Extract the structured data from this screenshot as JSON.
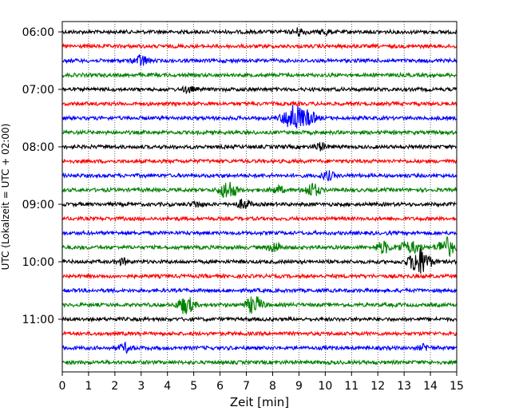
{
  "chart_data": {
    "type": "line",
    "title": "",
    "xlabel": "Zeit  [min]",
    "ylabel": "UTC (Lokalzeit = UTC + 02:00)",
    "xlim": [
      0,
      15
    ],
    "x_ticks": [
      0,
      1,
      2,
      3,
      4,
      5,
      6,
      7,
      8,
      9,
      10,
      11,
      12,
      13,
      14,
      15
    ],
    "x_tick_labels": [
      "0",
      "1",
      "2",
      "3",
      "4",
      "5",
      "6",
      "7",
      "8",
      "9",
      "10",
      "11",
      "12",
      "13",
      "14",
      "15"
    ],
    "y_tick_labels": [
      "06:00",
      "07:00",
      "08:00",
      "09:00",
      "10:00",
      "11:00"
    ],
    "y_tick_row_index": [
      0,
      4,
      8,
      12,
      16,
      20
    ],
    "grid": "vertical dotted",
    "color_cycle": [
      "#000000",
      "#ff0000",
      "#0000ff",
      "#008000"
    ],
    "trace_minutes": 15,
    "series": [
      {
        "start": "06:00",
        "events": [
          {
            "t": 9.0,
            "amp": 0.8
          },
          {
            "t": 10.0,
            "amp": 0.6
          }
        ]
      },
      {
        "start": "06:15",
        "events": []
      },
      {
        "start": "06:30",
        "events": [
          {
            "t": 3.0,
            "amp": 1.2
          }
        ]
      },
      {
        "start": "06:45",
        "events": []
      },
      {
        "start": "07:00",
        "events": [
          {
            "t": 4.8,
            "amp": 0.6
          }
        ]
      },
      {
        "start": "07:15",
        "events": []
      },
      {
        "start": "07:30",
        "events": [
          {
            "t": 8.8,
            "amp": 3.0
          },
          {
            "t": 9.4,
            "amp": 1.3
          }
        ]
      },
      {
        "start": "07:45",
        "events": []
      },
      {
        "start": "08:00",
        "events": [
          {
            "t": 9.8,
            "amp": 0.8
          }
        ]
      },
      {
        "start": "08:15",
        "events": []
      },
      {
        "start": "08:30",
        "events": [
          {
            "t": 10.1,
            "amp": 0.9
          }
        ]
      },
      {
        "start": "08:45",
        "events": [
          {
            "t": 6.3,
            "amp": 2.0
          },
          {
            "t": 8.2,
            "amp": 0.8
          },
          {
            "t": 9.5,
            "amp": 1.5
          }
        ]
      },
      {
        "start": "09:00",
        "events": [
          {
            "t": 5.1,
            "amp": 0.6
          },
          {
            "t": 6.9,
            "amp": 1.0
          }
        ]
      },
      {
        "start": "09:15",
        "events": []
      },
      {
        "start": "09:30",
        "events": []
      },
      {
        "start": "09:45",
        "events": [
          {
            "t": 8.1,
            "amp": 1.1
          },
          {
            "t": 12.2,
            "amp": 1.3
          },
          {
            "t": 13.0,
            "amp": 1.1
          },
          {
            "t": 13.4,
            "amp": 1.0
          },
          {
            "t": 14.6,
            "amp": 2.1
          }
        ]
      },
      {
        "start": "10:00",
        "events": [
          {
            "t": 2.3,
            "amp": 0.6
          },
          {
            "t": 13.6,
            "amp": 3.0
          }
        ]
      },
      {
        "start": "10:15",
        "events": []
      },
      {
        "start": "10:30",
        "events": []
      },
      {
        "start": "10:45",
        "events": [
          {
            "t": 4.7,
            "amp": 1.9
          },
          {
            "t": 7.3,
            "amp": 1.9
          }
        ]
      },
      {
        "start": "11:00",
        "events": []
      },
      {
        "start": "11:15",
        "events": []
      },
      {
        "start": "11:30",
        "events": [
          {
            "t": 2.4,
            "amp": 0.9
          },
          {
            "t": 13.8,
            "amp": 0.7
          }
        ]
      },
      {
        "start": "11:45",
        "events": []
      }
    ]
  }
}
